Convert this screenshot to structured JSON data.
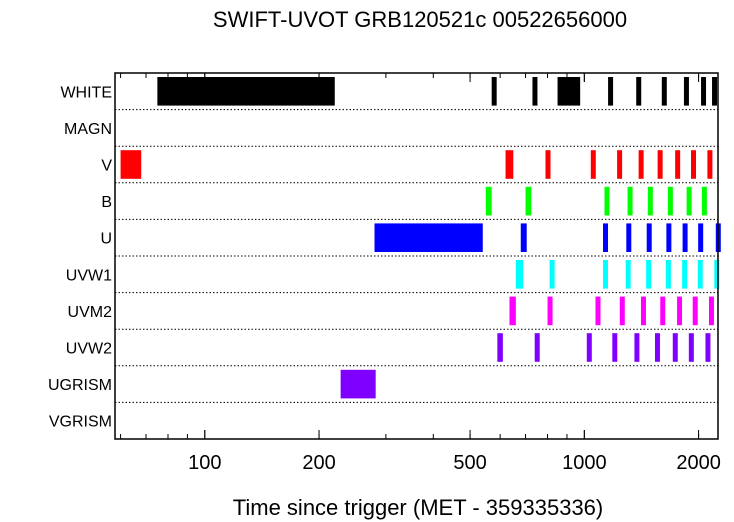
{
  "chart_data": {
    "type": "timeline",
    "title": "SWIFT-UVOT GRB120521c 00522656000",
    "xlabel": "Time since trigger (MET - 359335336)",
    "xscale": "log",
    "xlim": [
      58,
      2250
    ],
    "xticks": [
      {
        "value": 100,
        "label": "100"
      },
      {
        "value": 200,
        "label": "200"
      },
      {
        "value": 500,
        "label": "500"
      },
      {
        "value": 1000,
        "label": "1000"
      },
      {
        "value": 2000,
        "label": "2000"
      }
    ],
    "grid": "dotted row separators",
    "rows": [
      {
        "label": "WHITE",
        "color": "#000000",
        "segments": [
          [
            75,
            220
          ],
          [
            570,
            585
          ],
          [
            730,
            745
          ],
          [
            850,
            975
          ],
          [
            1155,
            1175
          ],
          [
            1370,
            1390
          ],
          [
            1600,
            1620
          ],
          [
            1830,
            1850
          ],
          [
            2030,
            2050
          ],
          [
            2170,
            2190
          ]
        ]
      },
      {
        "label": "MAGN",
        "color": "#000000",
        "segments": []
      },
      {
        "label": "V",
        "color": "#ff0000",
        "segments": [
          [
            60,
            68
          ],
          [
            620,
            650
          ],
          [
            790,
            810
          ],
          [
            1040,
            1060
          ],
          [
            1220,
            1240
          ],
          [
            1390,
            1405
          ],
          [
            1560,
            1575
          ],
          [
            1735,
            1750
          ],
          [
            1910,
            1925
          ],
          [
            2110,
            2125
          ]
        ]
      },
      {
        "label": "B",
        "color": "#00ff00",
        "segments": [
          [
            550,
            570
          ],
          [
            700,
            725
          ],
          [
            1130,
            1150
          ],
          [
            1300,
            1315
          ],
          [
            1470,
            1490
          ],
          [
            1660,
            1680
          ],
          [
            1860,
            1880
          ],
          [
            2040,
            2055
          ]
        ]
      },
      {
        "label": "U",
        "color": "#0000ff",
        "segments": [
          [
            280,
            540
          ],
          [
            680,
            705
          ],
          [
            1120,
            1140
          ],
          [
            1290,
            1305
          ],
          [
            1460,
            1475
          ],
          [
            1645,
            1660
          ],
          [
            1815,
            1830
          ],
          [
            1995,
            2010
          ],
          [
            2220,
            2240
          ]
        ]
      },
      {
        "label": "UVW1",
        "color": "#00ffff",
        "segments": [
          [
            660,
            690
          ],
          [
            810,
            830
          ],
          [
            1120,
            1140
          ],
          [
            1285,
            1300
          ],
          [
            1455,
            1470
          ],
          [
            1640,
            1655
          ],
          [
            1810,
            1825
          ],
          [
            1990,
            2005
          ],
          [
            2200,
            2215
          ]
        ]
      },
      {
        "label": "UVM2",
        "color": "#ff00ff",
        "segments": [
          [
            635,
            660
          ],
          [
            800,
            820
          ],
          [
            1070,
            1090
          ],
          [
            1240,
            1255
          ],
          [
            1410,
            1425
          ],
          [
            1585,
            1600
          ],
          [
            1755,
            1770
          ],
          [
            1930,
            1945
          ],
          [
            2130,
            2145
          ]
        ]
      },
      {
        "label": "UVW2",
        "color": "#7f00ff",
        "segments": [
          [
            590,
            610
          ],
          [
            740,
            760
          ],
          [
            1015,
            1035
          ],
          [
            1185,
            1200
          ],
          [
            1355,
            1370
          ],
          [
            1535,
            1550
          ],
          [
            1710,
            1725
          ],
          [
            1885,
            1900
          ],
          [
            2085,
            2100
          ]
        ]
      },
      {
        "label": "UGRISM",
        "color": "#7f00ff",
        "segments": [
          [
            228,
            282
          ]
        ]
      },
      {
        "label": "VGRISM",
        "color": "#000000",
        "segments": []
      }
    ]
  }
}
